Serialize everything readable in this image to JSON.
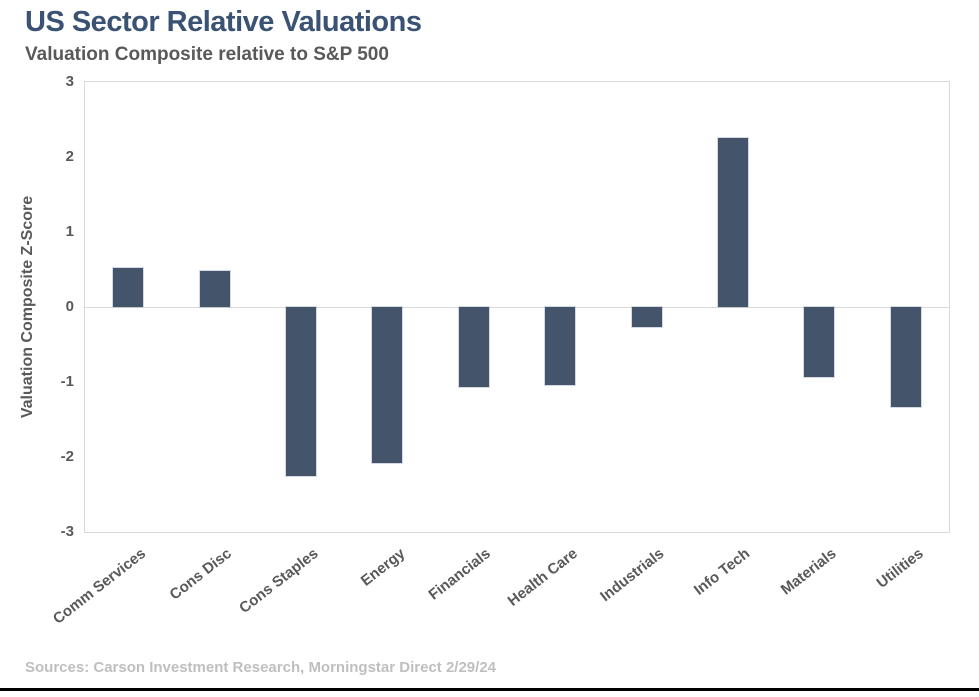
{
  "chart_data": {
    "type": "bar",
    "title": "US Sector Relative Valuations",
    "subtitle": "Valuation Composite relative to S&P 500",
    "categories": [
      "Comm Services",
      "Cons Disc",
      "Cons Staples",
      "Energy",
      "Financials",
      "Health Care",
      "Industrials",
      "Info Tech",
      "Materials",
      "Utilities"
    ],
    "values": [
      0.52,
      0.48,
      -2.25,
      -2.08,
      -1.07,
      -1.04,
      -0.26,
      2.25,
      -0.93,
      -1.33
    ],
    "xlabel": "",
    "ylabel": "Valuation Composite Z-Score",
    "ylim": [
      -3,
      3
    ],
    "yticks": [
      3,
      2,
      1,
      0,
      -1,
      -2,
      -3
    ],
    "grid": "zero-line-only",
    "legend": "none",
    "source": "Sources: Carson Investment Research, Morningstar Direct 2/29/24",
    "colors": {
      "bar": "#44546A",
      "title": "#3A5273",
      "subtitle": "#595959",
      "axis_text": "#595959",
      "source_text": "#BFBFBF",
      "grid": "#D9D9D9",
      "bottom_rule": "#000000"
    }
  }
}
